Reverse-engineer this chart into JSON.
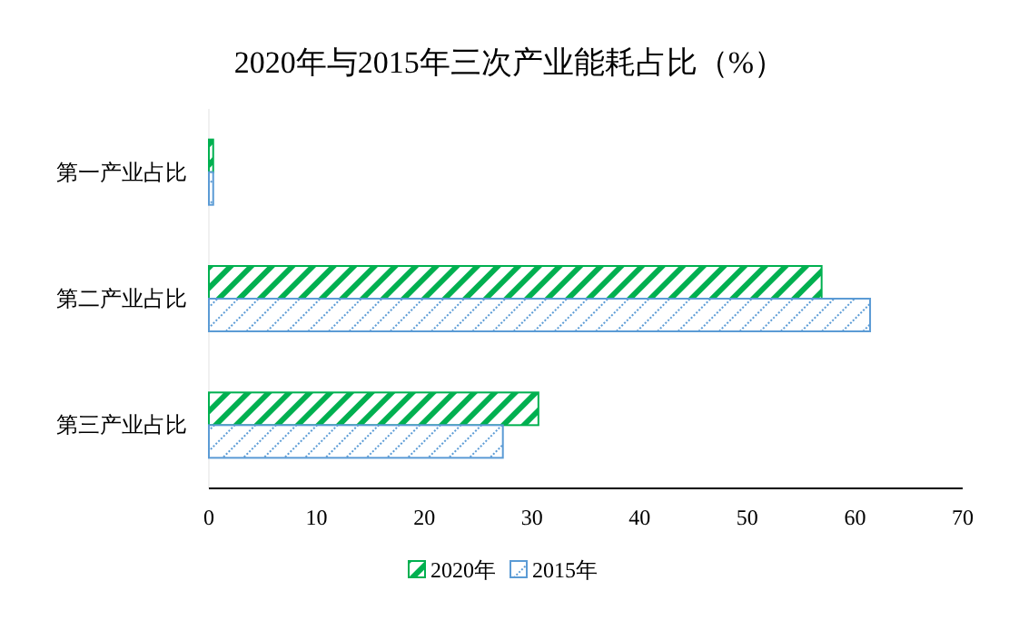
{
  "chart_data": {
    "type": "bar",
    "orientation": "horizontal",
    "title": "2020年与2015年三次产业能耗占比（%）",
    "categories": [
      "第一产业占比",
      "第二产业占比",
      "第三产业占比"
    ],
    "series": [
      {
        "name": "2020年",
        "color": "#00b050",
        "values": [
          0.4,
          56.9,
          30.6
        ]
      },
      {
        "name": "2015年",
        "color": "#5b9bd5",
        "values": [
          0.4,
          61.4,
          27.3
        ]
      }
    ],
    "xlim": [
      0,
      70
    ],
    "xticks": [
      0,
      10,
      20,
      30,
      40,
      50,
      60,
      70
    ],
    "grid": false,
    "legend": "bottom"
  }
}
